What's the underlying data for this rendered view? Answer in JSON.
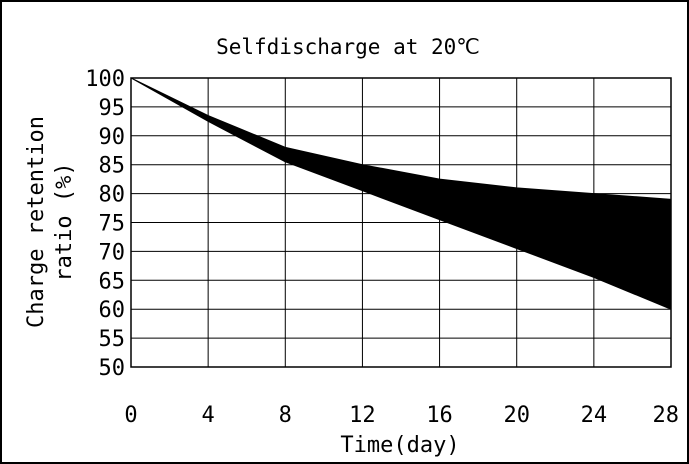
{
  "chart_data": {
    "type": "area",
    "title": "Selfdischarge at 20℃",
    "xlabel": "Time(day)",
    "ylabel_lines": [
      "Charge retention",
      "ratio (%)"
    ],
    "x_ticks": [
      0,
      4,
      8,
      12,
      16,
      20,
      24,
      28
    ],
    "y_ticks": [
      100,
      95,
      90,
      85,
      80,
      75,
      70,
      65,
      60,
      55,
      50
    ],
    "xlim": [
      0,
      28
    ],
    "ylim": [
      50,
      100
    ],
    "grid": true,
    "legend": "none",
    "fill_color": "#000000",
    "series": [
      {
        "x": [
          0,
          4,
          8,
          12,
          16,
          20,
          24,
          28
        ],
        "values": [
          100,
          93.5,
          88,
          85,
          82.5,
          81,
          80,
          79
        ]
      },
      {
        "x": [
          0,
          4,
          8,
          12,
          16,
          20,
          24,
          28
        ],
        "values": [
          100,
          92.5,
          85.5,
          80.5,
          75.5,
          70.5,
          65.5,
          60
        ]
      }
    ]
  }
}
